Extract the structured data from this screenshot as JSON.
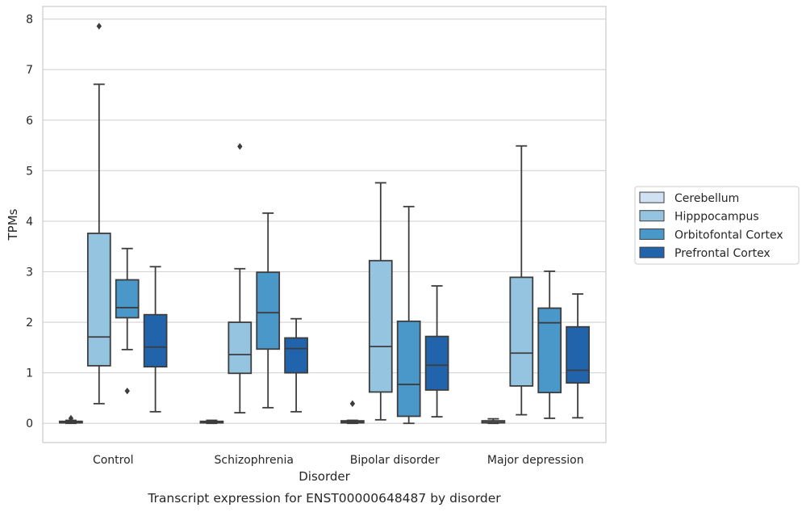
{
  "chart_data": {
    "type": "boxplot",
    "title": "",
    "caption": "Transcript expression for ENST00000648487 by disorder",
    "xlabel": "Disorder",
    "ylabel": "TPMs",
    "ylim": [
      -0.38,
      8.25
    ],
    "yticks": [
      0,
      1,
      2,
      3,
      4,
      5,
      6,
      7,
      8
    ],
    "grid": "horizontal",
    "legend_position": "right",
    "categories": [
      "Control",
      "Schizophrenia",
      "Bipolar disorder",
      "Major depression"
    ],
    "series": [
      {
        "name": "Cerebellum",
        "color": "#d0e1f2",
        "boxes": [
          {
            "whislo": 0.0,
            "q1": 0.01,
            "med": 0.02,
            "q3": 0.04,
            "whishi": 0.06,
            "fliers": [
              0.1
            ]
          },
          {
            "whislo": 0.0,
            "q1": 0.01,
            "med": 0.02,
            "q3": 0.04,
            "whishi": 0.06,
            "fliers": []
          },
          {
            "whislo": 0.0,
            "q1": 0.01,
            "med": 0.03,
            "q3": 0.05,
            "whishi": 0.06,
            "fliers": [
              0.39
            ]
          },
          {
            "whislo": 0.0,
            "q1": 0.01,
            "med": 0.02,
            "q3": 0.05,
            "whishi": 0.09,
            "fliers": []
          }
        ]
      },
      {
        "name": "Hipppocampus",
        "color": "#94c4df",
        "boxes": [
          {
            "whislo": 0.39,
            "q1": 1.14,
            "med": 1.71,
            "q3": 3.76,
            "whishi": 6.71,
            "fliers": [
              7.86
            ]
          },
          {
            "whislo": 0.21,
            "q1": 0.99,
            "med": 1.36,
            "q3": 2.0,
            "whishi": 3.06,
            "fliers": [
              5.48
            ]
          },
          {
            "whislo": 0.07,
            "q1": 0.62,
            "med": 1.52,
            "q3": 3.22,
            "whishi": 4.76,
            "fliers": []
          },
          {
            "whislo": 0.17,
            "q1": 0.74,
            "med": 1.39,
            "q3": 2.89,
            "whishi": 5.49,
            "fliers": []
          }
        ]
      },
      {
        "name": "Orbitofontal Cortex",
        "color": "#4a98c9",
        "boxes": [
          {
            "whislo": 1.46,
            "q1": 2.09,
            "med": 2.29,
            "q3": 2.84,
            "whishi": 3.46,
            "fliers": [
              0.64
            ]
          },
          {
            "whislo": 0.31,
            "q1": 1.47,
            "med": 2.19,
            "q3": 2.99,
            "whishi": 4.16,
            "fliers": []
          },
          {
            "whislo": 0.0,
            "q1": 0.14,
            "med": 0.77,
            "q3": 2.02,
            "whishi": 4.29,
            "fliers": []
          },
          {
            "whislo": 0.1,
            "q1": 0.61,
            "med": 1.99,
            "q3": 2.28,
            "whishi": 3.01,
            "fliers": []
          }
        ]
      },
      {
        "name": "Prefrontal Cortex",
        "color": "#2164ab",
        "boxes": [
          {
            "whislo": 0.23,
            "q1": 1.12,
            "med": 1.51,
            "q3": 2.15,
            "whishi": 3.1,
            "fliers": []
          },
          {
            "whislo": 0.23,
            "q1": 1.0,
            "med": 1.48,
            "q3": 1.69,
            "whishi": 2.07,
            "fliers": []
          },
          {
            "whislo": 0.13,
            "q1": 0.66,
            "med": 1.15,
            "q3": 1.72,
            "whishi": 2.72,
            "fliers": []
          },
          {
            "whislo": 0.11,
            "q1": 0.8,
            "med": 1.05,
            "q3": 1.91,
            "whishi": 2.56,
            "fliers": []
          }
        ]
      }
    ]
  }
}
